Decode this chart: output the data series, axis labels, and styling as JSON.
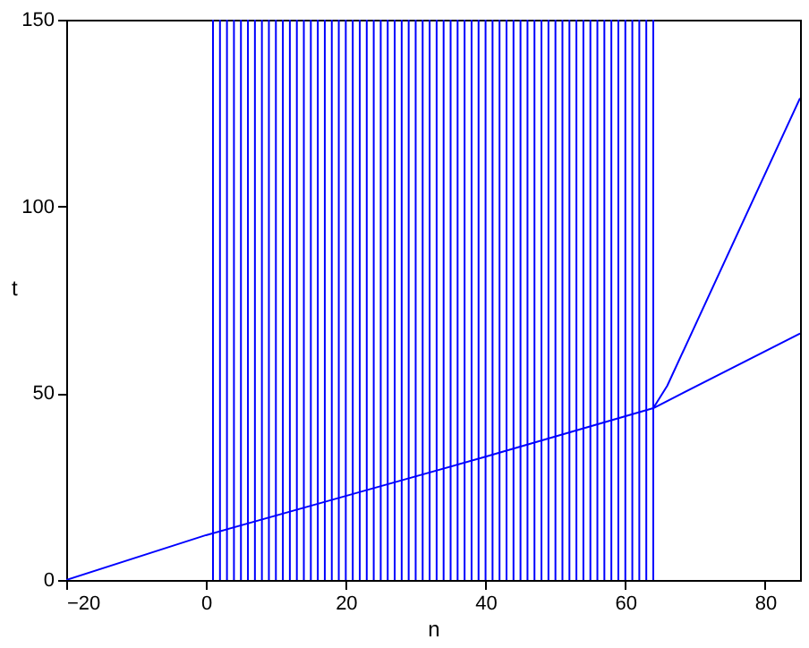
{
  "chart_data": {
    "type": "line",
    "xlabel": "n",
    "ylabel": "t",
    "xlim": [
      -20,
      85
    ],
    "xticks": [
      -20,
      0,
      20,
      40,
      60,
      80
    ],
    "ylim": [
      0,
      150
    ],
    "yticks": [
      0,
      50,
      100,
      150
    ],
    "grid": false,
    "series": [
      {
        "type": "bar",
        "color": "#0000ff",
        "x": [
          1,
          2,
          3,
          4,
          5,
          6,
          7,
          8,
          9,
          10,
          11,
          12,
          13,
          14,
          15,
          16,
          17,
          18,
          19,
          20,
          21,
          22,
          23,
          24,
          25,
          26,
          27,
          28,
          29,
          30,
          31,
          32,
          33,
          34,
          35,
          36,
          37,
          38,
          39,
          40,
          41,
          42,
          43,
          44,
          45,
          46,
          47,
          48,
          49,
          50,
          51,
          52,
          53,
          54,
          55,
          56,
          57,
          58,
          59,
          60,
          61,
          62,
          63,
          64
        ],
        "values": [
          150,
          150,
          150,
          150,
          150,
          150,
          150,
          150,
          150,
          150,
          150,
          150,
          150,
          150,
          150,
          150,
          150,
          150,
          150,
          150,
          150,
          150,
          150,
          150,
          150,
          150,
          150,
          150,
          150,
          150,
          150,
          150,
          150,
          150,
          150,
          150,
          150,
          150,
          150,
          150,
          150,
          150,
          150,
          150,
          150,
          150,
          150,
          150,
          150,
          150,
          150,
          150,
          150,
          150,
          150,
          150,
          150,
          150,
          150,
          150,
          150,
          150,
          150,
          150
        ]
      },
      {
        "color": "#0000ff",
        "x": [
          -20,
          0,
          20,
          40,
          64,
          85
        ],
        "values": [
          0,
          12,
          22.5,
          33,
          46,
          66
        ]
      },
      {
        "color": "#0000ff",
        "x": [
          64,
          66,
          85
        ],
        "values": [
          46,
          52,
          129
        ]
      }
    ]
  }
}
